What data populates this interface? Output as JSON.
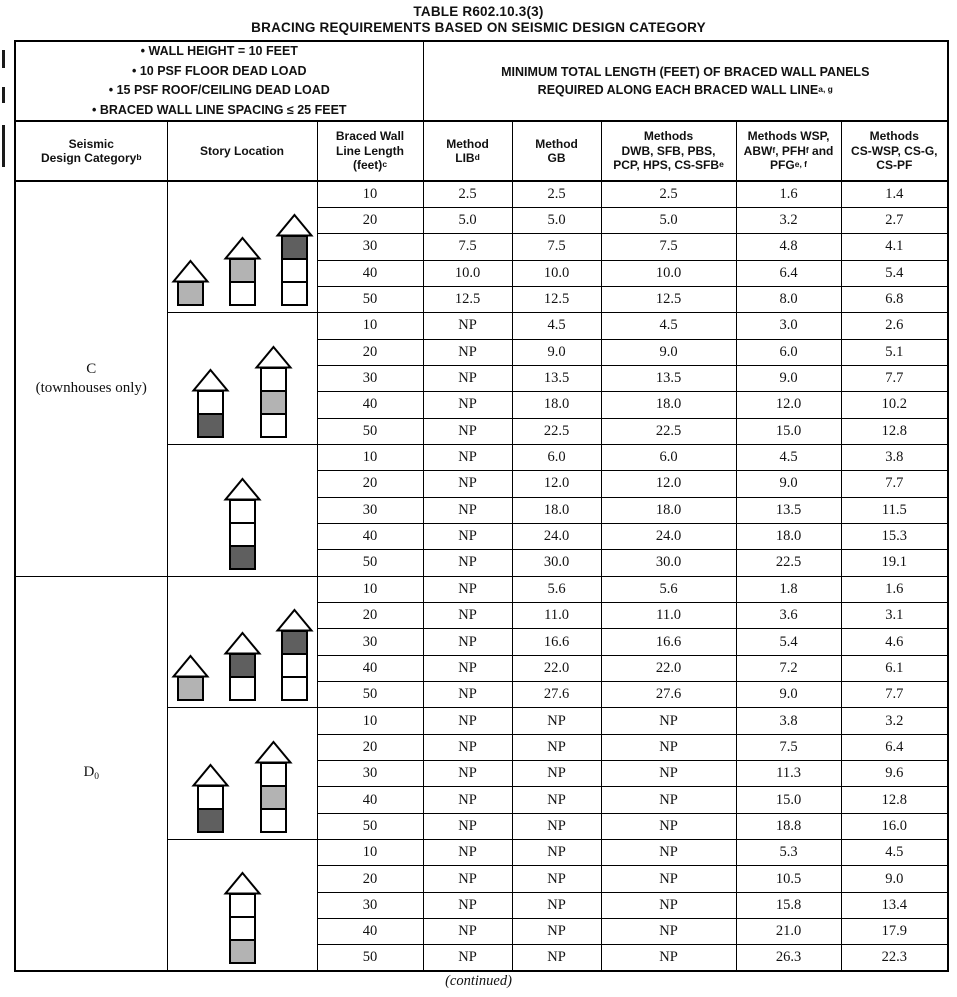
{
  "title_line1": "TABLE R602.10.3(3)",
  "title_line2": "BRACING REQUIREMENTS BASED ON SEISMIC DESIGN CATEGORY",
  "header_box": {
    "conditions": [
      "WALL HEIGHT = 10 FEET",
      "10 PSF FLOOR DEAD LOAD",
      "15 PSF ROOF/CEILING DEAD LOAD",
      "BRACED WALL LINE SPACING ≤ 25 FEET"
    ],
    "span_title": "MINIMUM TOTAL LENGTH (FEET) OF BRACED WALL PANELS\nREQUIRED ALONG EACH BRACED WALL LINE^{a, g}"
  },
  "columns": [
    "Seismic\nDesign Category^{b}",
    "Story Location",
    "Braced Wall\nLine Length\n(feet)^{c}",
    "Method\nLIB^{d}",
    "Method\nGB",
    "Methods\nDWB, SFB, PBS,\nPCP, HPS, CS-SFB^{e}",
    "Methods WSP,\nABW^{f}, PFH^{f} and\nPFG^{e, f}",
    "Methods\nCS-WSP, CS-G,\nCS-PF"
  ],
  "np_label": "NP",
  "colors": {
    "story_light": "#b3b3b3",
    "story_dark": "#5f5f5f",
    "line": "#000000"
  },
  "sections": [
    {
      "category": "C\n(townhouses only)",
      "groups": [
        {
          "houses": [
            {
              "stories": 1,
              "shaded": 0,
              "tone": "light"
            },
            {
              "stories": 2,
              "shaded": 0,
              "tone": "light"
            },
            {
              "stories": 3,
              "shaded": 0,
              "tone": "dark"
            }
          ],
          "rows": [
            [
              "10",
              "2.5",
              "2.5",
              "2.5",
              "1.6",
              "1.4"
            ],
            [
              "20",
              "5.0",
              "5.0",
              "5.0",
              "3.2",
              "2.7"
            ],
            [
              "30",
              "7.5",
              "7.5",
              "7.5",
              "4.8",
              "4.1"
            ],
            [
              "40",
              "10.0",
              "10.0",
              "10.0",
              "6.4",
              "5.4"
            ],
            [
              "50",
              "12.5",
              "12.5",
              "12.5",
              "8.0",
              "6.8"
            ]
          ]
        },
        {
          "houses": [
            {
              "stories": 2,
              "shaded": 1,
              "tone": "dark"
            },
            {
              "stories": 3,
              "shaded": 1,
              "tone": "light"
            }
          ],
          "rows": [
            [
              "10",
              "NP",
              "4.5",
              "4.5",
              "3.0",
              "2.6"
            ],
            [
              "20",
              "NP",
              "9.0",
              "9.0",
              "6.0",
              "5.1"
            ],
            [
              "30",
              "NP",
              "13.5",
              "13.5",
              "9.0",
              "7.7"
            ],
            [
              "40",
              "NP",
              "18.0",
              "18.0",
              "12.0",
              "10.2"
            ],
            [
              "50",
              "NP",
              "22.5",
              "22.5",
              "15.0",
              "12.8"
            ]
          ]
        },
        {
          "houses": [
            {
              "stories": 3,
              "shaded": 2,
              "tone": "dark"
            }
          ],
          "rows": [
            [
              "10",
              "NP",
              "6.0",
              "6.0",
              "4.5",
              "3.8"
            ],
            [
              "20",
              "NP",
              "12.0",
              "12.0",
              "9.0",
              "7.7"
            ],
            [
              "30",
              "NP",
              "18.0",
              "18.0",
              "13.5",
              "11.5"
            ],
            [
              "40",
              "NP",
              "24.0",
              "24.0",
              "18.0",
              "15.3"
            ],
            [
              "50",
              "NP",
              "30.0",
              "30.0",
              "22.5",
              "19.1"
            ]
          ]
        }
      ]
    },
    {
      "category": "D_{0}",
      "groups": [
        {
          "houses": [
            {
              "stories": 1,
              "shaded": 0,
              "tone": "light"
            },
            {
              "stories": 2,
              "shaded": 0,
              "tone": "dark"
            },
            {
              "stories": 3,
              "shaded": 0,
              "tone": "dark"
            }
          ],
          "rows": [
            [
              "10",
              "NP",
              "5.6",
              "5.6",
              "1.8",
              "1.6"
            ],
            [
              "20",
              "NP",
              "11.0",
              "11.0",
              "3.6",
              "3.1"
            ],
            [
              "30",
              "NP",
              "16.6",
              "16.6",
              "5.4",
              "4.6"
            ],
            [
              "40",
              "NP",
              "22.0",
              "22.0",
              "7.2",
              "6.1"
            ],
            [
              "50",
              "NP",
              "27.6",
              "27.6",
              "9.0",
              "7.7"
            ]
          ]
        },
        {
          "houses": [
            {
              "stories": 2,
              "shaded": 1,
              "tone": "dark"
            },
            {
              "stories": 3,
              "shaded": 1,
              "tone": "light"
            }
          ],
          "rows": [
            [
              "10",
              "NP",
              "NP",
              "NP",
              "3.8",
              "3.2"
            ],
            [
              "20",
              "NP",
              "NP",
              "NP",
              "7.5",
              "6.4"
            ],
            [
              "30",
              "NP",
              "NP",
              "NP",
              "11.3",
              "9.6"
            ],
            [
              "40",
              "NP",
              "NP",
              "NP",
              "15.0",
              "12.8"
            ],
            [
              "50",
              "NP",
              "NP",
              "NP",
              "18.8",
              "16.0"
            ]
          ]
        },
        {
          "houses": [
            {
              "stories": 3,
              "shaded": 2,
              "tone": "light"
            }
          ],
          "rows": [
            [
              "10",
              "NP",
              "NP",
              "NP",
              "5.3",
              "4.5"
            ],
            [
              "20",
              "NP",
              "NP",
              "NP",
              "10.5",
              "9.0"
            ],
            [
              "30",
              "NP",
              "NP",
              "NP",
              "15.8",
              "13.4"
            ],
            [
              "40",
              "NP",
              "NP",
              "NP",
              "21.0",
              "17.9"
            ],
            [
              "50",
              "NP",
              "NP",
              "NP",
              "26.3",
              "22.3"
            ]
          ]
        }
      ]
    }
  ],
  "footer": {
    "continued": "(continued)"
  }
}
